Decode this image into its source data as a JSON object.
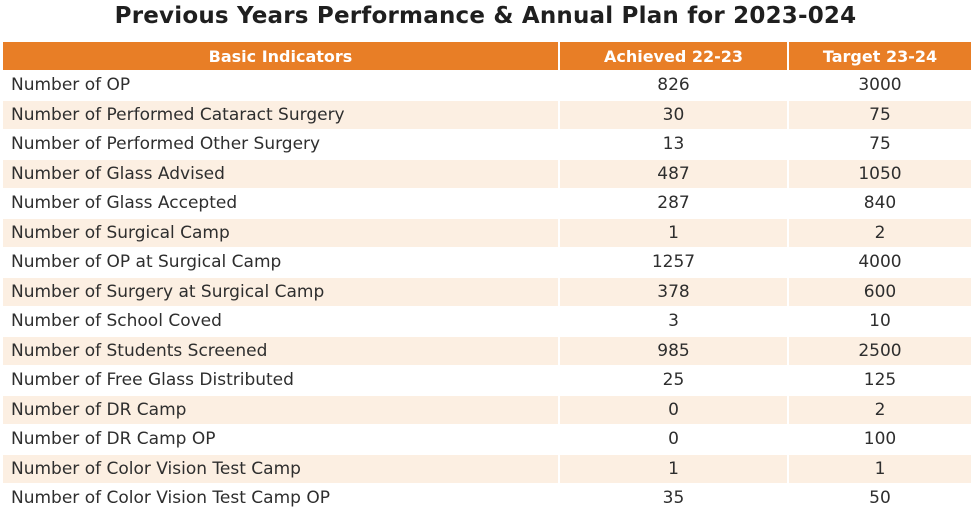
{
  "title": "Previous Years Performance & Annual Plan for 2023-024",
  "colors": {
    "header_bg": "#e87e26",
    "row_alt_bg": "#fcefe2",
    "header_text": "#ffffff"
  },
  "table": {
    "headers": [
      "Basic Indicators",
      "Achieved 22-23",
      "Target 23-24"
    ],
    "rows": [
      [
        "Number of OP",
        "826",
        "3000"
      ],
      [
        "Number of Performed Cataract Surgery",
        "30",
        "75"
      ],
      [
        "Number of Performed Other Surgery",
        "13",
        "75"
      ],
      [
        "Number of Glass Advised",
        "487",
        "1050"
      ],
      [
        "Number of Glass Accepted",
        "287",
        "840"
      ],
      [
        "Number of Surgical  Camp",
        "1",
        "2"
      ],
      [
        "Number of OP at Surgical Camp",
        "1257",
        "4000"
      ],
      [
        "Number of Surgery at Surgical Camp",
        "378",
        "600"
      ],
      [
        "Number of School Coved",
        "3",
        "10"
      ],
      [
        "Number of Students Screened",
        "985",
        "2500"
      ],
      [
        "Number of Free Glass Distributed",
        "25",
        "125"
      ],
      [
        "Number of DR Camp",
        "0",
        "2"
      ],
      [
        "Number of DR Camp OP",
        "0",
        "100"
      ],
      [
        "Number of Color Vision Test Camp",
        "1",
        "1"
      ],
      [
        "Number of Color Vision Test Camp OP",
        "35",
        "50"
      ]
    ]
  }
}
